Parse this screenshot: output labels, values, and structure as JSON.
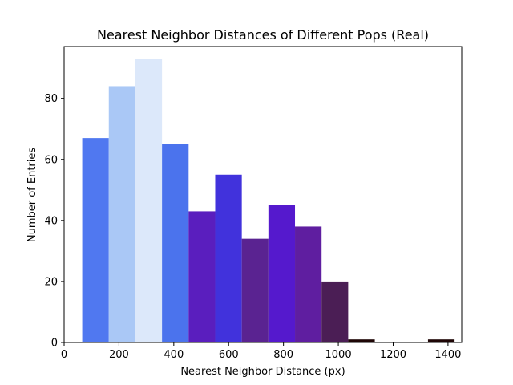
{
  "chart_data": {
    "type": "bar",
    "title": "Nearest Neighbor Distances of Different Pops (Real)",
    "xlabel": "Nearest Neighbor Distance (px)",
    "ylabel": "Number of Entries",
    "xlim": [
      0,
      1450
    ],
    "ylim": [
      0,
      97
    ],
    "xticks": [
      0,
      200,
      400,
      600,
      800,
      1000,
      1200,
      1400
    ],
    "yticks": [
      0,
      20,
      40,
      60,
      80
    ],
    "grid": false,
    "legend": "none",
    "bins": [
      {
        "x0": 66,
        "x1": 163,
        "value": 67,
        "color": "#5078f0"
      },
      {
        "x0": 163,
        "x1": 260,
        "value": 84,
        "color": "#aac8f6"
      },
      {
        "x0": 260,
        "x1": 357,
        "value": 93,
        "color": "#dce8fa"
      },
      {
        "x0": 357,
        "x1": 454,
        "value": 65,
        "color": "#4b73ed"
      },
      {
        "x0": 454,
        "x1": 551,
        "value": 43,
        "color": "#5a1ebe"
      },
      {
        "x0": 551,
        "x1": 648,
        "value": 55,
        "color": "#4132dc"
      },
      {
        "x0": 648,
        "x1": 745,
        "value": 34,
        "color": "#5a2391"
      },
      {
        "x0": 745,
        "x1": 842,
        "value": 45,
        "color": "#5519cd"
      },
      {
        "x0": 842,
        "x1": 939,
        "value": 38,
        "color": "#5f1ea0"
      },
      {
        "x0": 939,
        "x1": 1036,
        "value": 20,
        "color": "#4b1e55"
      },
      {
        "x0": 1036,
        "x1": 1133,
        "value": 1,
        "color": "#1e0505"
      },
      {
        "x0": 1133,
        "x1": 1230,
        "value": 0,
        "color": "#1e0505"
      },
      {
        "x0": 1230,
        "x1": 1327,
        "value": 0,
        "color": "#1e0505"
      },
      {
        "x0": 1327,
        "x1": 1424,
        "value": 1,
        "color": "#1e0505"
      }
    ]
  }
}
